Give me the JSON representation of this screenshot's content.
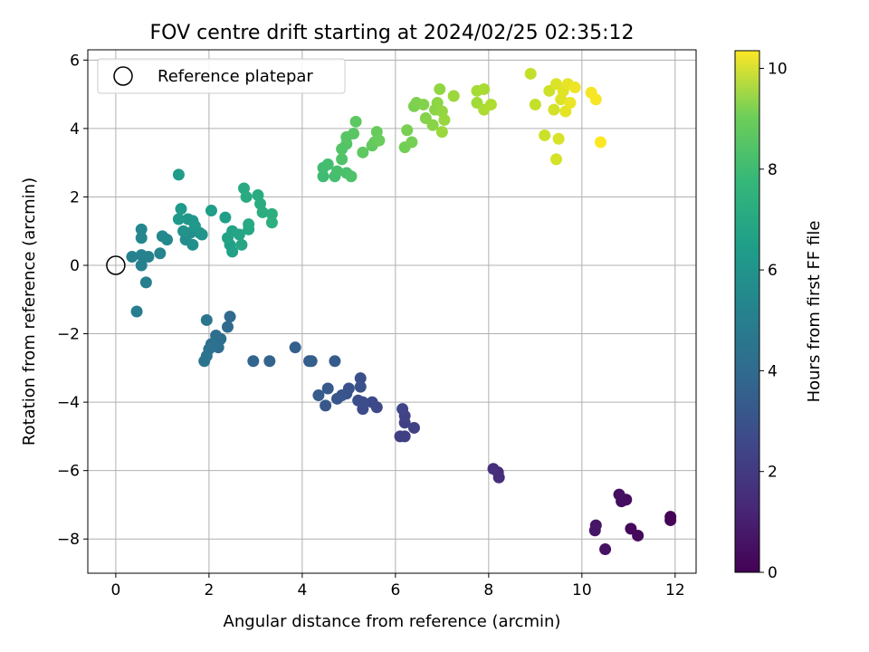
{
  "chart_data": {
    "type": "scatter",
    "title": "FOV centre drift starting at 2024/02/25 02:35:12",
    "xlabel": "Angular distance from reference (arcmin)",
    "ylabel": "Rotation from reference (arcmin)",
    "xlim": [
      -0.6,
      12.45
    ],
    "ylim": [
      -9.0,
      6.3
    ],
    "xticks": [
      0,
      2,
      4,
      6,
      8,
      10,
      12
    ],
    "yticks": [
      -8,
      -6,
      -4,
      -2,
      0,
      2,
      4,
      6
    ],
    "grid": true,
    "legend": {
      "placement": "top-left",
      "entries": [
        "Reference platepar"
      ]
    },
    "reference_point": {
      "x": 0,
      "y": 0,
      "label": "Reference platepar"
    },
    "colorbar": {
      "label": "Hours from first FF file",
      "range": [
        0,
        10.35
      ],
      "ticks": [
        0,
        2,
        4,
        6,
        8,
        10
      ],
      "colormap": "viridis"
    },
    "points": [
      {
        "x": 11.9,
        "y": -7.35,
        "h": 0.05
      },
      {
        "x": 11.9,
        "y": -7.45,
        "h": 0.1
      },
      {
        "x": 11.2,
        "y": -7.9,
        "h": 0.2
      },
      {
        "x": 11.05,
        "y": -7.7,
        "h": 0.25
      },
      {
        "x": 10.95,
        "y": -6.85,
        "h": 0.3
      },
      {
        "x": 10.85,
        "y": -6.9,
        "h": 0.35
      },
      {
        "x": 10.8,
        "y": -6.7,
        "h": 0.4
      },
      {
        "x": 10.5,
        "y": -8.3,
        "h": 0.5
      },
      {
        "x": 10.3,
        "y": -7.6,
        "h": 0.6
      },
      {
        "x": 10.28,
        "y": -7.75,
        "h": 0.65
      },
      {
        "x": 8.2,
        "y": -6.05,
        "h": 1.3
      },
      {
        "x": 8.22,
        "y": -6.2,
        "h": 1.35
      },
      {
        "x": 8.1,
        "y": -5.95,
        "h": 1.4
      },
      {
        "x": 6.1,
        "y": -5.0,
        "h": 1.9
      },
      {
        "x": 6.2,
        "y": -5.0,
        "h": 1.95
      },
      {
        "x": 6.2,
        "y": -4.6,
        "h": 2.0
      },
      {
        "x": 6.4,
        "y": -4.75,
        "h": 2.05
      },
      {
        "x": 6.2,
        "y": -4.4,
        "h": 2.1
      },
      {
        "x": 6.15,
        "y": -4.2,
        "h": 2.15
      },
      {
        "x": 5.6,
        "y": -4.15,
        "h": 2.3
      },
      {
        "x": 5.5,
        "y": -4.0,
        "h": 2.35
      },
      {
        "x": 5.3,
        "y": -4.2,
        "h": 2.4
      },
      {
        "x": 5.3,
        "y": -4.0,
        "h": 2.45
      },
      {
        "x": 5.2,
        "y": -3.95,
        "h": 2.5
      },
      {
        "x": 5.25,
        "y": -3.3,
        "h": 2.55
      },
      {
        "x": 5.25,
        "y": -3.55,
        "h": 2.6
      },
      {
        "x": 5.0,
        "y": -3.6,
        "h": 2.65
      },
      {
        "x": 4.95,
        "y": -3.75,
        "h": 2.7
      },
      {
        "x": 4.85,
        "y": -3.8,
        "h": 2.75
      },
      {
        "x": 4.75,
        "y": -3.9,
        "h": 2.8
      },
      {
        "x": 4.5,
        "y": -4.1,
        "h": 2.85
      },
      {
        "x": 4.55,
        "y": -3.6,
        "h": 2.9
      },
      {
        "x": 4.35,
        "y": -3.8,
        "h": 2.95
      },
      {
        "x": 4.7,
        "y": -2.8,
        "h": 3.0
      },
      {
        "x": 4.15,
        "y": -2.8,
        "h": 3.05
      },
      {
        "x": 4.2,
        "y": -2.8,
        "h": 3.1
      },
      {
        "x": 3.85,
        "y": -2.4,
        "h": 3.15
      },
      {
        "x": 3.3,
        "y": -2.8,
        "h": 3.3
      },
      {
        "x": 2.95,
        "y": -2.8,
        "h": 3.35
      },
      {
        "x": 2.45,
        "y": -1.5,
        "h": 3.55
      },
      {
        "x": 2.4,
        "y": -1.8,
        "h": 3.6
      },
      {
        "x": 2.25,
        "y": -2.15,
        "h": 3.65
      },
      {
        "x": 2.2,
        "y": -2.4,
        "h": 3.7
      },
      {
        "x": 2.15,
        "y": -2.05,
        "h": 3.75
      },
      {
        "x": 2.1,
        "y": -2.35,
        "h": 3.8
      },
      {
        "x": 2.05,
        "y": -2.3,
        "h": 3.85
      },
      {
        "x": 2.0,
        "y": -2.45,
        "h": 3.9
      },
      {
        "x": 1.95,
        "y": -2.65,
        "h": 3.95
      },
      {
        "x": 1.9,
        "y": -2.8,
        "h": 4.0
      },
      {
        "x": 1.95,
        "y": -1.6,
        "h": 4.05
      },
      {
        "x": 0.45,
        "y": -1.35,
        "h": 4.4
      },
      {
        "x": 0.65,
        "y": -0.5,
        "h": 4.45
      },
      {
        "x": 0.55,
        "y": 0.0,
        "h": 4.5
      },
      {
        "x": 0.35,
        "y": 0.25,
        "h": 4.55
      },
      {
        "x": 0.55,
        "y": 0.3,
        "h": 4.6
      },
      {
        "x": 0.7,
        "y": 0.25,
        "h": 4.65
      },
      {
        "x": 0.95,
        "y": 0.35,
        "h": 4.7
      },
      {
        "x": 0.55,
        "y": 0.8,
        "h": 4.75
      },
      {
        "x": 0.55,
        "y": 1.05,
        "h": 4.8
      },
      {
        "x": 1.0,
        "y": 0.85,
        "h": 4.85
      },
      {
        "x": 1.1,
        "y": 0.75,
        "h": 4.9
      },
      {
        "x": 1.5,
        "y": 0.75,
        "h": 5.1
      },
      {
        "x": 1.65,
        "y": 0.6,
        "h": 5.15
      },
      {
        "x": 1.6,
        "y": 0.95,
        "h": 5.2
      },
      {
        "x": 1.45,
        "y": 1.0,
        "h": 5.25
      },
      {
        "x": 1.8,
        "y": 0.95,
        "h": 5.3
      },
      {
        "x": 1.85,
        "y": 0.9,
        "h": 5.35
      },
      {
        "x": 1.65,
        "y": 1.3,
        "h": 5.4
      },
      {
        "x": 1.55,
        "y": 1.35,
        "h": 5.45
      },
      {
        "x": 1.7,
        "y": 1.15,
        "h": 5.5
      },
      {
        "x": 1.35,
        "y": 1.35,
        "h": 5.55
      },
      {
        "x": 1.4,
        "y": 1.65,
        "h": 5.6
      },
      {
        "x": 1.35,
        "y": 2.65,
        "h": 5.7
      },
      {
        "x": 2.05,
        "y": 1.6,
        "h": 5.75
      },
      {
        "x": 2.35,
        "y": 1.4,
        "h": 5.8
      },
      {
        "x": 2.45,
        "y": 0.6,
        "h": 5.85
      },
      {
        "x": 2.5,
        "y": 0.4,
        "h": 5.9
      },
      {
        "x": 2.4,
        "y": 0.8,
        "h": 5.95
      },
      {
        "x": 2.5,
        "y": 1.0,
        "h": 6.0
      },
      {
        "x": 2.65,
        "y": 0.9,
        "h": 6.05
      },
      {
        "x": 2.7,
        "y": 0.6,
        "h": 6.1
      },
      {
        "x": 2.85,
        "y": 1.05,
        "h": 6.15
      },
      {
        "x": 2.85,
        "y": 1.2,
        "h": 6.2
      },
      {
        "x": 2.75,
        "y": 2.25,
        "h": 6.25
      },
      {
        "x": 2.8,
        "y": 2.0,
        "h": 6.3
      },
      {
        "x": 3.05,
        "y": 2.05,
        "h": 6.35
      },
      {
        "x": 3.1,
        "y": 1.8,
        "h": 6.4
      },
      {
        "x": 3.15,
        "y": 1.55,
        "h": 6.45
      },
      {
        "x": 3.35,
        "y": 1.5,
        "h": 6.5
      },
      {
        "x": 3.35,
        "y": 1.25,
        "h": 6.55
      },
      {
        "x": 4.45,
        "y": 2.6,
        "h": 7.1
      },
      {
        "x": 4.45,
        "y": 2.85,
        "h": 7.15
      },
      {
        "x": 4.55,
        "y": 2.95,
        "h": 7.2
      },
      {
        "x": 4.7,
        "y": 2.6,
        "h": 7.25
      },
      {
        "x": 4.75,
        "y": 2.75,
        "h": 7.3
      },
      {
        "x": 4.95,
        "y": 2.7,
        "h": 7.35
      },
      {
        "x": 5.05,
        "y": 2.6,
        "h": 7.4
      },
      {
        "x": 4.85,
        "y": 3.1,
        "h": 7.45
      },
      {
        "x": 4.85,
        "y": 3.4,
        "h": 7.5
      },
      {
        "x": 4.95,
        "y": 3.55,
        "h": 7.55
      },
      {
        "x": 4.95,
        "y": 3.75,
        "h": 7.6
      },
      {
        "x": 5.1,
        "y": 3.85,
        "h": 7.65
      },
      {
        "x": 5.15,
        "y": 4.2,
        "h": 7.7
      },
      {
        "x": 5.3,
        "y": 3.3,
        "h": 7.75
      },
      {
        "x": 5.5,
        "y": 3.5,
        "h": 7.8
      },
      {
        "x": 5.55,
        "y": 3.6,
        "h": 7.85
      },
      {
        "x": 5.6,
        "y": 3.9,
        "h": 7.9
      },
      {
        "x": 5.65,
        "y": 3.65,
        "h": 7.95
      },
      {
        "x": 6.2,
        "y": 3.45,
        "h": 8.1
      },
      {
        "x": 6.35,
        "y": 3.6,
        "h": 8.15
      },
      {
        "x": 6.25,
        "y": 3.95,
        "h": 8.2
      },
      {
        "x": 6.4,
        "y": 4.65,
        "h": 8.25
      },
      {
        "x": 6.45,
        "y": 4.75,
        "h": 8.3
      },
      {
        "x": 6.6,
        "y": 4.7,
        "h": 8.35
      },
      {
        "x": 6.65,
        "y": 4.3,
        "h": 8.4
      },
      {
        "x": 6.8,
        "y": 4.1,
        "h": 8.45
      },
      {
        "x": 6.85,
        "y": 4.55,
        "h": 8.5
      },
      {
        "x": 6.9,
        "y": 4.75,
        "h": 8.55
      },
      {
        "x": 6.95,
        "y": 5.15,
        "h": 8.6
      },
      {
        "x": 7.0,
        "y": 4.5,
        "h": 8.65
      },
      {
        "x": 7.05,
        "y": 4.25,
        "h": 8.7
      },
      {
        "x": 7.0,
        "y": 3.9,
        "h": 8.75
      },
      {
        "x": 7.25,
        "y": 4.95,
        "h": 8.8
      },
      {
        "x": 7.75,
        "y": 4.75,
        "h": 8.9
      },
      {
        "x": 7.75,
        "y": 5.1,
        "h": 8.95
      },
      {
        "x": 7.9,
        "y": 5.15,
        "h": 9.0
      },
      {
        "x": 7.9,
        "y": 4.55,
        "h": 9.05
      },
      {
        "x": 8.05,
        "y": 4.7,
        "h": 9.1
      },
      {
        "x": 8.9,
        "y": 5.6,
        "h": 9.4
      },
      {
        "x": 9.0,
        "y": 4.7,
        "h": 9.45
      },
      {
        "x": 9.2,
        "y": 3.8,
        "h": 9.55
      },
      {
        "x": 9.3,
        "y": 5.1,
        "h": 9.6
      },
      {
        "x": 9.4,
        "y": 4.55,
        "h": 9.65
      },
      {
        "x": 9.45,
        "y": 3.1,
        "h": 9.7
      },
      {
        "x": 9.5,
        "y": 3.7,
        "h": 9.75
      },
      {
        "x": 9.45,
        "y": 5.3,
        "h": 9.8
      },
      {
        "x": 9.55,
        "y": 4.85,
        "h": 9.85
      },
      {
        "x": 9.6,
        "y": 5.1,
        "h": 9.9
      },
      {
        "x": 9.65,
        "y": 4.5,
        "h": 9.95
      },
      {
        "x": 9.7,
        "y": 5.3,
        "h": 10.0
      },
      {
        "x": 9.75,
        "y": 4.75,
        "h": 10.05
      },
      {
        "x": 9.85,
        "y": 5.2,
        "h": 10.1
      },
      {
        "x": 10.2,
        "y": 5.05,
        "h": 10.2
      },
      {
        "x": 10.3,
        "y": 4.85,
        "h": 10.25
      },
      {
        "x": 10.4,
        "y": 3.6,
        "h": 10.35
      }
    ]
  }
}
